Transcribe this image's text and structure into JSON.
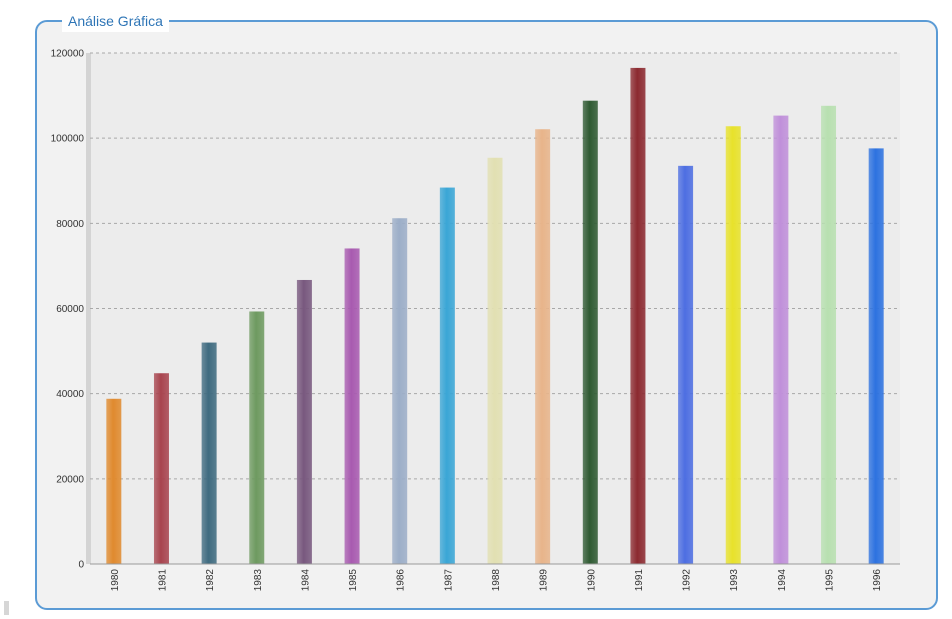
{
  "panel": {
    "title": "Análise Gráfica"
  },
  "colors": {
    "border": "#5b9bd5",
    "title": "#2e75b6",
    "plot_bg": "#ececec",
    "grid": "#a8a8a8"
  },
  "chart_data": {
    "type": "bar",
    "title": "",
    "xlabel": "",
    "ylabel": "",
    "ylim": [
      0,
      120000
    ],
    "yticks": [
      0,
      20000,
      40000,
      60000,
      80000,
      100000,
      120000
    ],
    "grid": true,
    "categories": [
      "1980",
      "1981",
      "1982",
      "1983",
      "1984",
      "1985",
      "1986",
      "1987",
      "1988",
      "1989",
      "1990",
      "1991",
      "1992",
      "1993",
      "1994",
      "1995",
      "1996"
    ],
    "tick_labels": [
      "1980",
      "1981",
      "1982",
      "1983",
      "1984",
      "1985",
      "1986",
      "1987",
      "1988",
      "1989",
      "1990",
      "1991",
      "1992",
      "1993",
      "1994",
      "1995",
      "1996"
    ],
    "values": [
      38800,
      44800,
      52000,
      59300,
      66700,
      74100,
      81200,
      88400,
      95400,
      102100,
      108800,
      116500,
      93500,
      102800,
      105300,
      107600,
      97600
    ],
    "bar_colors": [
      "#e08a2e",
      "#a8444e",
      "#3f6b80",
      "#6e9a60",
      "#78587e",
      "#a85ab0",
      "#9caec8",
      "#3aa6d6",
      "#e2e0b2",
      "#e8b48a",
      "#2f5a32",
      "#8c2a30",
      "#4d6ee2",
      "#e8e22a",
      "#c090da",
      "#b8e0b0",
      "#2d72e0"
    ]
  }
}
